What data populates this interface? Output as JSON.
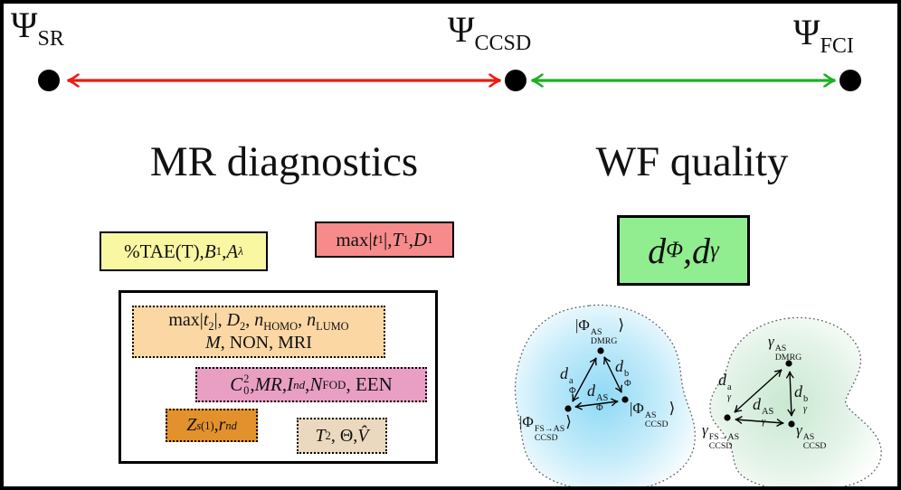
{
  "figure": {
    "top_axis": {
      "left_label_html": "Ψ<sub>SR</sub>",
      "center_label_html": "Ψ<sub>CCSD</sub>",
      "right_label_html": "Ψ<sub>FCI</sub>",
      "red_arrow_color": "#ee1a10",
      "green_arrow_color": "#1cb022",
      "node_color": "#000000"
    },
    "left_panel": {
      "title": "MR diagnostics",
      "yellow_box_html": "%TAE(T), <i>B</i><sub>1</sub>, <i>A</i><sub><i>λ</i></sub>",
      "yellow_box_bg": "#faf7a2",
      "salmon_box_html": "max|<i>t</i><sub>1</sub>|, <i>T</i><sub>1</sub>, <i>D</i><sub>1</sub>",
      "salmon_box_bg": "#f78b8b",
      "group_box": {
        "peach_line1_html": "max|<i>t</i><sub>2</sub>|, <i>D</i><sub>2</sub>, <i>n</i><sub>HOMO</sub>, <i>n</i><sub>LUMO</sub>",
        "peach_line2_html": "<i>M</i>, NON, MRI",
        "peach_bg": "#fbd7a4",
        "pink_html": "<i>C</i><span class='st'><span>2</span><span>0</span></span>, <i>MR</i>, <i>I</i><sub><i>nd</i></sub>, <i>N</i><sub>FOD</sub>, EEN",
        "pink_bg": "#e99fc3",
        "orange_html": "<i>Z</i><sub><i>s</i>(1)</sub>, <i>r</i><sub><i>nd</i></sub>",
        "orange_bg": "#e2912d",
        "tan_html": "<i>T</i><sub>2</sub>, Θ, <i>V̂</i>",
        "tan_bg": "#ebd9bf"
      }
    },
    "right_panel": {
      "title": "WF quality",
      "distance_box_html": "<i>d</i><sub>Φ</sub>,<i>d</i><sub><i>γ</i></sub>",
      "distance_box_bg": "#90ee90",
      "wf_blob": {
        "fill_center": "#8ed9f5",
        "vertex_top_html": "|Φ<span class='st'><span>AS</span><span>DMRG</span></span>⟩",
        "vertex_bl_html": "|Φ<span class='st'><span>FS→AS</span><span>CCSD</span></span>⟩",
        "vertex_br_html": "|Φ<span class='st'><span>AS</span><span>CCSD</span></span>⟩",
        "edge_a_html": "d<span class='st'><span>a</span><span>Φ</span></span>",
        "edge_b_html": "d<span class='st'><span>b</span><span>Φ</span></span>",
        "edge_as_html": "d<span class='st'><span>AS</span><span>Φ</span></span>"
      },
      "dm_blob": {
        "fill_center": "#c8e8d1",
        "vertex_top_html": "<i>γ</i><span class='st'><span>AS</span><span>DMRG</span></span>",
        "vertex_bl_html": "<i>γ</i><span class='st'><span>FS→AS</span><span>CCSD</span></span>",
        "vertex_br_html": "<i>γ</i><span class='st'><span>AS</span><span>CCSD</span></span>",
        "edge_a_html": "d<span class='st'><span>a</span><span><i>γ</i></span></span>",
        "edge_b_html": "d<span class='st'><span>b</span><span><i>γ</i></span></span>",
        "edge_as_html": "d<span class='st'><span>AS</span><span><i>γ</i></span></span>"
      }
    }
  }
}
